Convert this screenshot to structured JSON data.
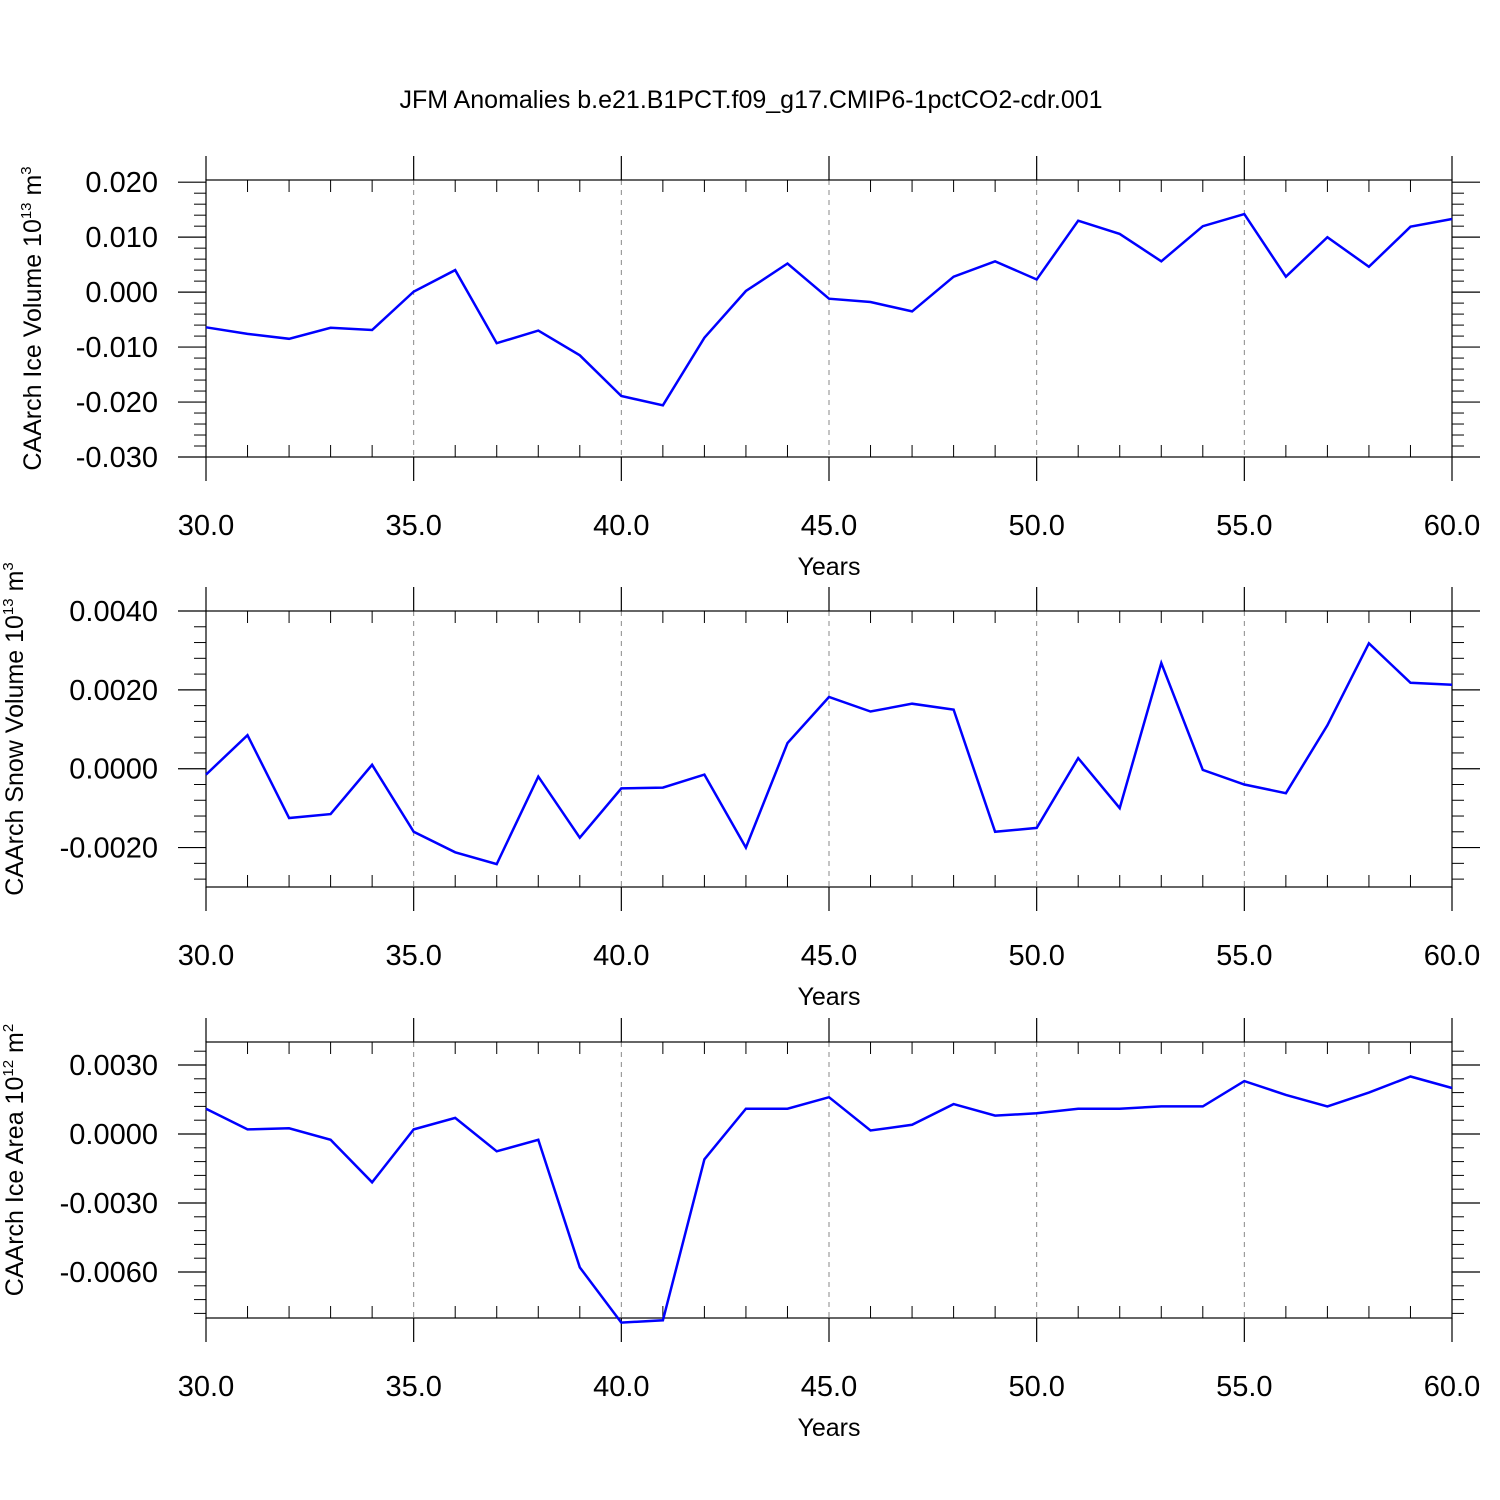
{
  "title": "JFM Anomalies b.e21.B1PCT.f09_g17.CMIP6-1pctCO2-cdr.001",
  "colors": {
    "series": "#0000ff",
    "axis": "#000000",
    "grid": "#888888"
  },
  "chart_data": [
    {
      "type": "line",
      "id": "ice-volume",
      "ylabel": {
        "main": "CAArch Ice Volume 10",
        "sup": "13",
        "unit": " m",
        "unit_sup": "3"
      },
      "xlabel": "Years",
      "xlim": [
        30,
        60
      ],
      "ylim": [
        -0.03,
        0.0204
      ],
      "x_ticks": [
        30,
        35,
        40,
        45,
        50,
        55,
        60
      ],
      "x_tick_labels": [
        "30.0",
        "35.0",
        "40.0",
        "45.0",
        "50.0",
        "55.0",
        "60.0"
      ],
      "y_ticks": [
        -0.03,
        -0.02,
        -0.01,
        0.0,
        0.01,
        0.02
      ],
      "y_tick_labels": [
        "-0.030",
        "-0.020",
        "-0.010",
        "0.000",
        "0.010",
        "0.020"
      ],
      "x_grid": "dashed vertical at major ticks",
      "series": [
        {
          "x": [
            30,
            31,
            32,
            33,
            34,
            35,
            36,
            37,
            38,
            39,
            40,
            41,
            42,
            43,
            44,
            45,
            46,
            47,
            48,
            49,
            50,
            51,
            52,
            53,
            54,
            55,
            56,
            57,
            58,
            59,
            60
          ],
          "values": [
            -0.0064,
            -0.0076,
            -0.0085,
            -0.0065,
            -0.0069,
            0.0001,
            0.004,
            -0.0093,
            -0.007,
            -0.0115,
            -0.0189,
            -0.0206,
            -0.0083,
            0.0002,
            0.0052,
            -0.0012,
            -0.0018,
            -0.0035,
            0.0028,
            0.0056,
            0.0023,
            0.013,
            0.0106,
            0.0056,
            0.012,
            0.0142,
            0.0028,
            0.01,
            0.0046,
            0.0119,
            0.0133
          ]
        }
      ]
    },
    {
      "type": "line",
      "id": "snow-volume",
      "ylabel": {
        "main": "CAArch Snow Volume 10",
        "sup": "13",
        "unit": " m",
        "unit_sup": "3"
      },
      "xlabel": "Years",
      "xlim": [
        30,
        60
      ],
      "ylim": [
        -0.003,
        0.004
      ],
      "x_ticks": [
        30,
        35,
        40,
        45,
        50,
        55,
        60
      ],
      "x_tick_labels": [
        "30.0",
        "35.0",
        "40.0",
        "45.0",
        "50.0",
        "55.0",
        "60.0"
      ],
      "y_ticks": [
        -0.002,
        0.0,
        0.002,
        0.004
      ],
      "y_tick_labels": [
        "-0.0020",
        "0.0000",
        "0.0020",
        "0.0040"
      ],
      "x_grid": "dashed vertical at major ticks",
      "series": [
        {
          "x": [
            30,
            31,
            32,
            33,
            34,
            35,
            36,
            37,
            38,
            39,
            40,
            41,
            42,
            43,
            44,
            45,
            46,
            47,
            48,
            49,
            50,
            51,
            52,
            53,
            54,
            55,
            56,
            57,
            58,
            59,
            60
          ],
          "values": [
            -0.00015,
            0.00085,
            -0.00125,
            -0.00115,
            0.0001,
            -0.0016,
            -0.00212,
            -0.00242,
            -0.0002,
            -0.00175,
            -0.0005,
            -0.00048,
            -0.00015,
            -0.002,
            0.00065,
            0.00182,
            0.00145,
            0.00165,
            0.0015,
            -0.0016,
            -0.0015,
            0.00027,
            -0.001,
            0.00268,
            -3e-05,
            -0.0004,
            -0.00062,
            0.0011,
            0.00318,
            0.00218,
            0.00213
          ]
        }
      ]
    },
    {
      "type": "line",
      "id": "ice-area",
      "ylabel": {
        "main": "CAArch Ice Area 10",
        "sup": "12",
        "unit": " m",
        "unit_sup": "2"
      },
      "xlabel": "Years",
      "xlim": [
        30,
        60
      ],
      "ylim": [
        -0.008,
        0.004
      ],
      "x_ticks": [
        30,
        35,
        40,
        45,
        50,
        55,
        60
      ],
      "x_tick_labels": [
        "30.0",
        "35.0",
        "40.0",
        "45.0",
        "50.0",
        "55.0",
        "60.0"
      ],
      "y_ticks": [
        -0.006,
        -0.003,
        0.0,
        0.003
      ],
      "y_tick_labels": [
        "-0.0060",
        "-0.0030",
        "0.0000",
        "0.0030"
      ],
      "x_grid": "dashed vertical at major ticks",
      "series": [
        {
          "x": [
            30,
            31,
            32,
            33,
            34,
            35,
            36,
            37,
            38,
            39,
            40,
            41,
            42,
            43,
            44,
            45,
            46,
            47,
            48,
            49,
            50,
            51,
            52,
            53,
            54,
            55,
            56,
            57,
            58,
            59,
            60
          ],
          "values": [
            0.0011,
            0.0002,
            0.00025,
            -0.00025,
            -0.0021,
            0.0002,
            0.0007,
            -0.00075,
            -0.00025,
            -0.0058,
            -0.0082,
            -0.0081,
            -0.0011,
            0.0011,
            0.0011,
            0.0016,
            0.00015,
            0.0004,
            0.0013,
            0.0008,
            0.0009,
            0.0011,
            0.0011,
            0.0012,
            0.0012,
            0.0023,
            0.0017,
            0.0012,
            0.0018,
            0.0025,
            0.002
          ]
        }
      ]
    }
  ]
}
